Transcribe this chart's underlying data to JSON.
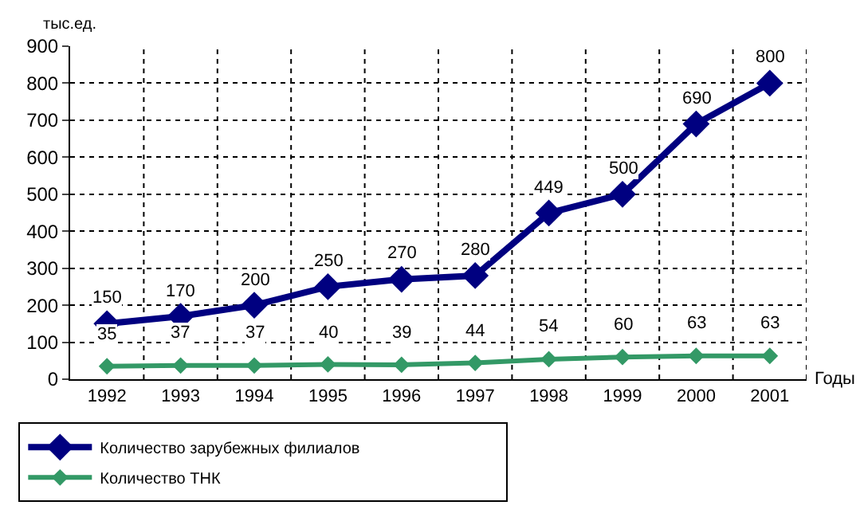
{
  "chart_data": {
    "type": "line",
    "xlabel": "Годы",
    "ylabel": "тыс.ед.",
    "categories": [
      "1992",
      "1993",
      "1994",
      "1995",
      "1996",
      "1997",
      "1998",
      "1999",
      "2000",
      "2001"
    ],
    "series": [
      {
        "name": "Количество зарубежных филиалов",
        "color": "#000080",
        "values": [
          150,
          170,
          200,
          250,
          270,
          280,
          449,
          500,
          690,
          800
        ]
      },
      {
        "name": "Количество ТНК",
        "color": "#339966",
        "values": [
          35,
          37,
          37,
          40,
          39,
          44,
          54,
          60,
          63,
          63
        ]
      }
    ],
    "ylim": [
      0,
      900
    ],
    "yticks": [
      0,
      100,
      200,
      300,
      400,
      500,
      600,
      700,
      800,
      900
    ],
    "grid": true,
    "legend": "bottom",
    "marker": "diamond",
    "line_style": "solid",
    "data_labels": true
  }
}
